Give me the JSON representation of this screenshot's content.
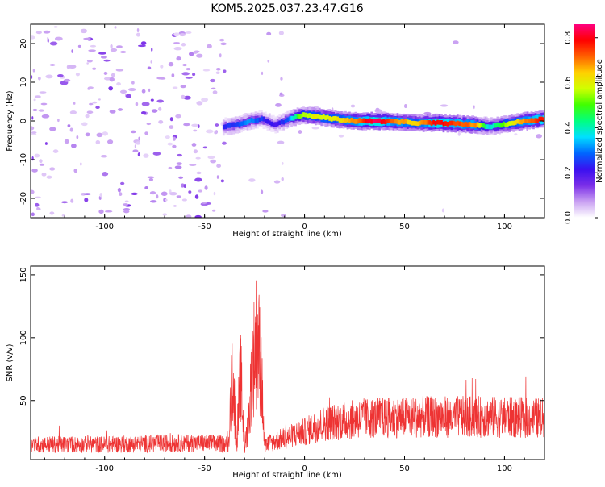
{
  "title": "KOM5.2025.037.23.47.G16",
  "chart_data": [
    {
      "type": "heatmap",
      "xlabel": "Height of straight line (km)",
      "ylabel": "Frequency (Hz)",
      "xlim": [
        -137,
        120
      ],
      "ylim": [
        -25,
        25
      ],
      "x_ticks": [
        -100,
        -50,
        0,
        50,
        100
      ],
      "y_ticks": [
        -20,
        -10,
        0,
        10,
        20
      ],
      "colorbar": {
        "label": "Normalized spectral amplitude",
        "range": [
          0,
          0.86
        ],
        "ticks": [
          0.0,
          0.2,
          0.4,
          0.6,
          0.8
        ],
        "colors": [
          "#ffffff",
          "#c9a0f2",
          "#7a2ee8",
          "#3a10f0",
          "#0066ff",
          "#00e0ff",
          "#00ff80",
          "#40ff00",
          "#d0ff00",
          "#ffd000",
          "#ff6000",
          "#ff0000",
          "#ff0080"
        ]
      },
      "ridge": [
        {
          "x": -41,
          "y": -1.5,
          "v": 0.22
        },
        {
          "x": -35,
          "y": -1.0,
          "v": 0.25
        },
        {
          "x": -28,
          "y": 0.0,
          "v": 0.32
        },
        {
          "x": -22,
          "y": 0.5,
          "v": 0.25
        },
        {
          "x": -15,
          "y": -1.0,
          "v": 0.18
        },
        {
          "x": -8,
          "y": 0.5,
          "v": 0.3
        },
        {
          "x": -2,
          "y": 1.5,
          "v": 0.55
        },
        {
          "x": 5,
          "y": 1.2,
          "v": 0.6
        },
        {
          "x": 15,
          "y": 0.5,
          "v": 0.6
        },
        {
          "x": 25,
          "y": 0.0,
          "v": 0.7
        },
        {
          "x": 35,
          "y": 0.0,
          "v": 0.85
        },
        {
          "x": 45,
          "y": -0.2,
          "v": 0.7
        },
        {
          "x": 55,
          "y": -0.5,
          "v": 0.62
        },
        {
          "x": 65,
          "y": -0.5,
          "v": 0.8
        },
        {
          "x": 75,
          "y": -0.7,
          "v": 0.75
        },
        {
          "x": 85,
          "y": -1.0,
          "v": 0.68
        },
        {
          "x": 92,
          "y": -1.5,
          "v": 0.35
        },
        {
          "x": 100,
          "y": -0.8,
          "v": 0.55
        },
        {
          "x": 110,
          "y": 0.0,
          "v": 0.7
        },
        {
          "x": 120,
          "y": 0.5,
          "v": 0.8
        }
      ]
    },
    {
      "type": "line",
      "xlabel": "Height of straight line (km)",
      "ylabel": "SNR (v/v)",
      "xlim": [
        -137,
        120
      ],
      "ylim": [
        3,
        157
      ],
      "x_ticks": [
        -100,
        -50,
        0,
        50,
        100
      ],
      "y_ticks": [
        50,
        100,
        150
      ],
      "series": [
        {
          "color": "#ee3333",
          "envelope": [
            {
              "x": -137,
              "y": 15
            },
            {
              "x": -100,
              "y": 15
            },
            {
              "x": -70,
              "y": 16
            },
            {
              "x": -45,
              "y": 16
            },
            {
              "x": -38,
              "y": 15
            },
            {
              "x": -36,
              "y": 90
            },
            {
              "x": -34,
              "y": 20
            },
            {
              "x": -32,
              "y": 85
            },
            {
              "x": -30,
              "y": 15
            },
            {
              "x": -28,
              "y": 40
            },
            {
              "x": -26,
              "y": 95
            },
            {
              "x": -24,
              "y": 120
            },
            {
              "x": -22,
              "y": 100
            },
            {
              "x": -20,
              "y": 15
            },
            {
              "x": -10,
              "y": 20
            },
            {
              "x": 0,
              "y": 25
            },
            {
              "x": 10,
              "y": 32
            },
            {
              "x": 30,
              "y": 36
            },
            {
              "x": 60,
              "y": 37
            },
            {
              "x": 90,
              "y": 37
            },
            {
              "x": 120,
              "y": 36
            }
          ]
        }
      ]
    }
  ]
}
